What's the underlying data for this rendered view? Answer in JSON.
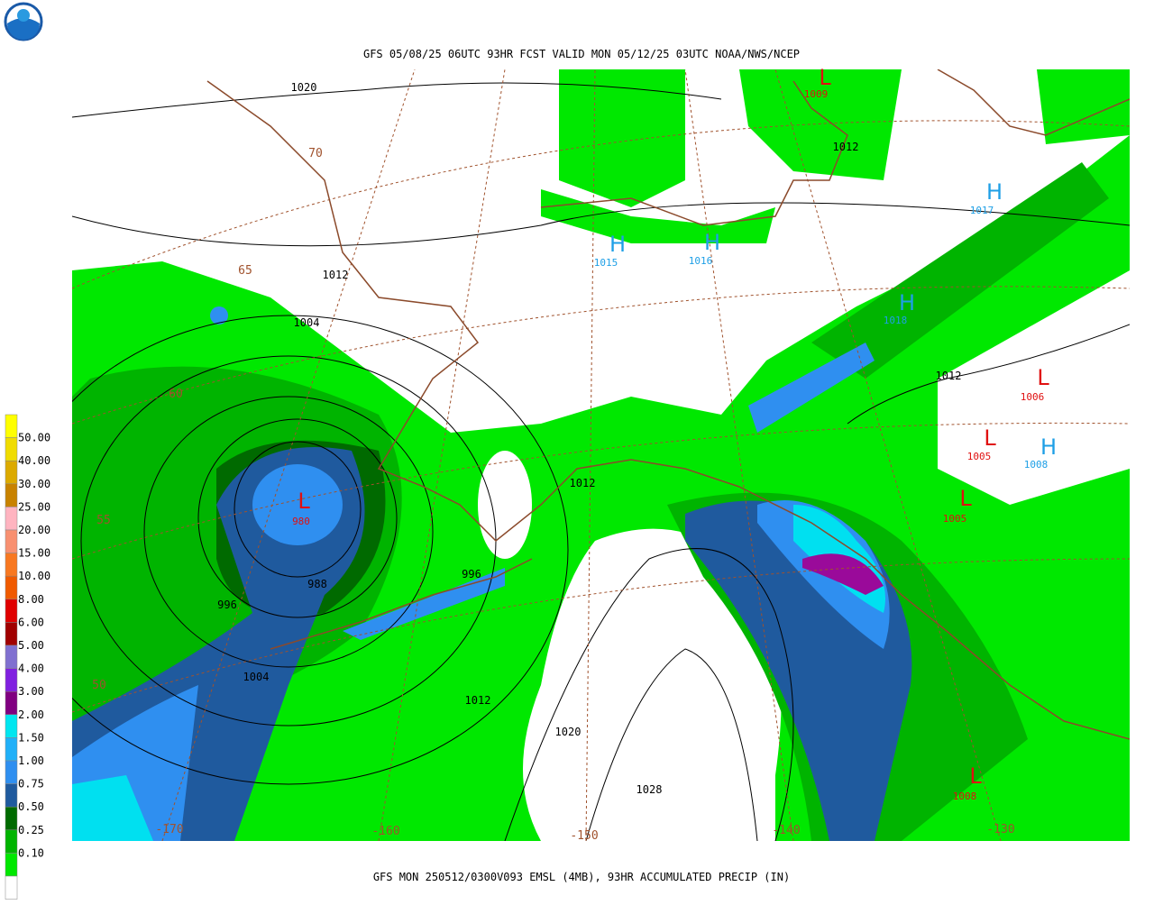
{
  "header": {
    "title": "GFS 05/08/25 06UTC 93HR FCST VALID MON 05/12/25 03UTC NOAA/NWS/NCEP"
  },
  "footer": {
    "caption": "GFS MON 250512/0300V093 EMSL (4MB), 93HR ACCUMULATED PRECIP (IN)"
  },
  "legend": {
    "labels": [
      "50.00",
      "40.00",
      "30.00",
      "25.00",
      "20.00",
      "15.00",
      "10.00",
      "8.00",
      "6.00",
      "5.00",
      "4.00",
      "3.00",
      "2.00",
      "1.50",
      "1.00",
      "0.75",
      "0.50",
      "0.25",
      "0.10"
    ]
  },
  "map": {
    "isobars": [
      "1020",
      "1012",
      "1012",
      "1004",
      "1012",
      "1012",
      "996",
      "988",
      "996",
      "1004",
      "1012",
      "1020",
      "1028"
    ],
    "highs": [
      {
        "symbol": "H",
        "pressure": "1015"
      },
      {
        "symbol": "H",
        "pressure": "1016"
      },
      {
        "symbol": "H",
        "pressure": "1017"
      },
      {
        "symbol": "H",
        "pressure": "1018"
      },
      {
        "symbol": "H",
        "pressure": "1008"
      }
    ],
    "lows": [
      {
        "symbol": "L",
        "pressure": "1009"
      },
      {
        "symbol": "L",
        "pressure": "1006"
      },
      {
        "symbol": "L",
        "pressure": "1005"
      },
      {
        "symbol": "L",
        "pressure": "1005"
      },
      {
        "symbol": "L",
        "pressure": "980"
      },
      {
        "symbol": "L",
        "pressure": "1008"
      }
    ],
    "grid_labels": [
      "70",
      "65",
      "60",
      "55",
      "50",
      "-170",
      "-160",
      "-150",
      "-140",
      "-130"
    ]
  }
}
